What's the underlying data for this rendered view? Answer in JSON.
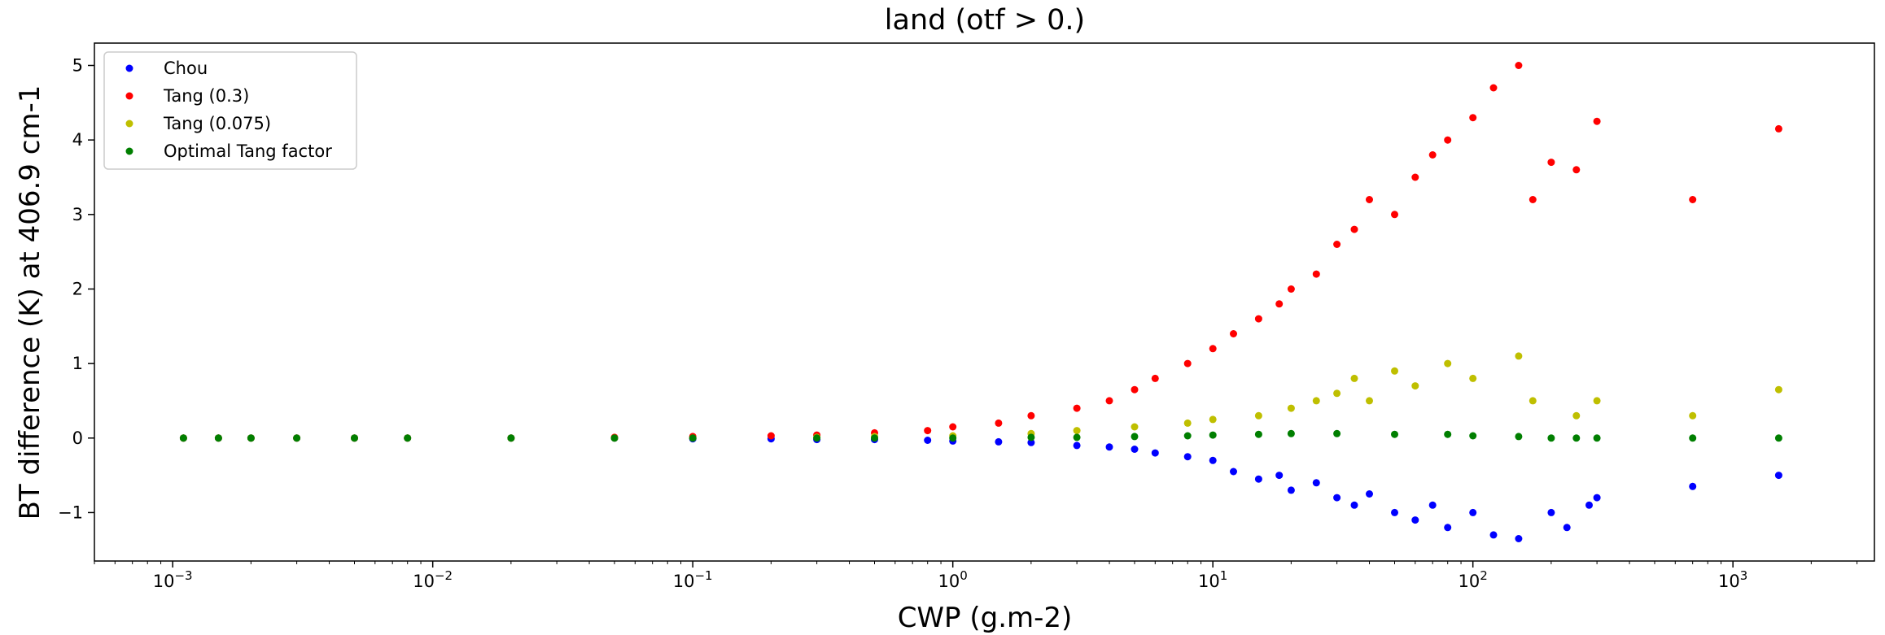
{
  "chart_data": {
    "type": "scatter",
    "title": "land (otf > 0.)",
    "xlabel": "CWP (g.m-2)",
    "ylabel": "BT difference (K) at 406.9 cm-1",
    "xscale": "log",
    "xlim": [
      0.0005,
      3500
    ],
    "ylim": [
      -1.65,
      5.3
    ],
    "xticks": [
      0.001,
      0.01,
      0.1,
      1,
      10,
      100,
      1000
    ],
    "xtick_labels": [
      {
        "base": "10",
        "exp": "−3"
      },
      {
        "base": "10",
        "exp": "−2"
      },
      {
        "base": "10",
        "exp": "−1"
      },
      {
        "base": "10",
        "exp": "0"
      },
      {
        "base": "10",
        "exp": "1"
      },
      {
        "base": "10",
        "exp": "2"
      },
      {
        "base": "10",
        "exp": "3"
      }
    ],
    "yticks": [
      -1,
      0,
      1,
      2,
      3,
      4,
      5
    ],
    "ytick_labels": [
      "−1",
      "0",
      "1",
      "2",
      "3",
      "4",
      "5"
    ],
    "legend_position": "top-left",
    "grid": false,
    "series": [
      {
        "name": "Chou",
        "color": "#0000ff",
        "points": [
          [
            0.0011,
            0
          ],
          [
            0.0015,
            0
          ],
          [
            0.002,
            0
          ],
          [
            0.003,
            0
          ],
          [
            0.005,
            0
          ],
          [
            0.008,
            0
          ],
          [
            0.02,
            0
          ],
          [
            0.05,
            0
          ],
          [
            0.1,
            -0.01
          ],
          [
            0.2,
            -0.01
          ],
          [
            0.3,
            -0.02
          ],
          [
            0.5,
            -0.02
          ],
          [
            0.8,
            -0.03
          ],
          [
            1,
            -0.04
          ],
          [
            1.5,
            -0.05
          ],
          [
            2,
            -0.06
          ],
          [
            3,
            -0.1
          ],
          [
            4,
            -0.12
          ],
          [
            5,
            -0.15
          ],
          [
            6,
            -0.2
          ],
          [
            8,
            -0.25
          ],
          [
            10,
            -0.3
          ],
          [
            12,
            -0.45
          ],
          [
            15,
            -0.55
          ],
          [
            18,
            -0.5
          ],
          [
            20,
            -0.7
          ],
          [
            25,
            -0.6
          ],
          [
            30,
            -0.8
          ],
          [
            35,
            -0.9
          ],
          [
            40,
            -0.75
          ],
          [
            50,
            -1.0
          ],
          [
            60,
            -1.1
          ],
          [
            70,
            -0.9
          ],
          [
            80,
            -1.2
          ],
          [
            100,
            -1.0
          ],
          [
            120,
            -1.3
          ],
          [
            150,
            -1.35
          ],
          [
            200,
            -1.0
          ],
          [
            230,
            -1.2
          ],
          [
            280,
            -0.9
          ],
          [
            300,
            -0.8
          ],
          [
            700,
            -0.65
          ],
          [
            1500,
            -0.5
          ]
        ]
      },
      {
        "name": "Tang (0.3)",
        "color": "#ff0000",
        "points": [
          [
            0.0011,
            0
          ],
          [
            0.0015,
            0
          ],
          [
            0.002,
            0
          ],
          [
            0.003,
            0
          ],
          [
            0.005,
            0
          ],
          [
            0.008,
            0
          ],
          [
            0.02,
            0
          ],
          [
            0.05,
            0.01
          ],
          [
            0.1,
            0.02
          ],
          [
            0.2,
            0.03
          ],
          [
            0.3,
            0.04
          ],
          [
            0.5,
            0.07
          ],
          [
            0.8,
            0.1
          ],
          [
            1,
            0.15
          ],
          [
            1.5,
            0.2
          ],
          [
            2,
            0.3
          ],
          [
            3,
            0.4
          ],
          [
            4,
            0.5
          ],
          [
            5,
            0.65
          ],
          [
            6,
            0.8
          ],
          [
            8,
            1.0
          ],
          [
            10,
            1.2
          ],
          [
            12,
            1.4
          ],
          [
            15,
            1.6
          ],
          [
            18,
            1.8
          ],
          [
            20,
            2.0
          ],
          [
            25,
            2.2
          ],
          [
            30,
            2.6
          ],
          [
            35,
            2.8
          ],
          [
            40,
            3.2
          ],
          [
            50,
            3.0
          ],
          [
            60,
            3.5
          ],
          [
            70,
            3.8
          ],
          [
            80,
            4.0
          ],
          [
            100,
            4.3
          ],
          [
            120,
            4.7
          ],
          [
            150,
            5.0
          ],
          [
            170,
            3.2
          ],
          [
            200,
            3.7
          ],
          [
            250,
            3.6
          ],
          [
            300,
            4.25
          ],
          [
            700,
            3.2
          ],
          [
            1500,
            4.15
          ]
        ]
      },
      {
        "name": "Tang (0.075)",
        "color": "#bfbf00",
        "points": [
          [
            0.0011,
            0
          ],
          [
            0.0015,
            0
          ],
          [
            0.002,
            0
          ],
          [
            0.003,
            0
          ],
          [
            0.005,
            0
          ],
          [
            0.008,
            0
          ],
          [
            0.02,
            0
          ],
          [
            0.05,
            0
          ],
          [
            0.1,
            0
          ],
          [
            0.3,
            0.01
          ],
          [
            0.5,
            0.02
          ],
          [
            1,
            0.03
          ],
          [
            2,
            0.06
          ],
          [
            3,
            0.1
          ],
          [
            5,
            0.15
          ],
          [
            8,
            0.2
          ],
          [
            10,
            0.25
          ],
          [
            15,
            0.3
          ],
          [
            20,
            0.4
          ],
          [
            25,
            0.5
          ],
          [
            30,
            0.6
          ],
          [
            35,
            0.8
          ],
          [
            40,
            0.5
          ],
          [
            50,
            0.9
          ],
          [
            60,
            0.7
          ],
          [
            80,
            1.0
          ],
          [
            100,
            0.8
          ],
          [
            150,
            1.1
          ],
          [
            170,
            0.5
          ],
          [
            250,
            0.3
          ],
          [
            300,
            0.5
          ],
          [
            700,
            0.3
          ],
          [
            1500,
            0.65
          ]
        ]
      },
      {
        "name": "Optimal Tang factor",
        "color": "#007f00",
        "points": [
          [
            0.0011,
            0
          ],
          [
            0.0015,
            0
          ],
          [
            0.002,
            0
          ],
          [
            0.003,
            0
          ],
          [
            0.005,
            0
          ],
          [
            0.008,
            0
          ],
          [
            0.02,
            0
          ],
          [
            0.05,
            0
          ],
          [
            0.1,
            0
          ],
          [
            0.3,
            0
          ],
          [
            0.5,
            0
          ],
          [
            1,
            0
          ],
          [
            2,
            0.01
          ],
          [
            3,
            0.01
          ],
          [
            5,
            0.02
          ],
          [
            8,
            0.03
          ],
          [
            10,
            0.04
          ],
          [
            15,
            0.05
          ],
          [
            20,
            0.06
          ],
          [
            30,
            0.06
          ],
          [
            50,
            0.05
          ],
          [
            80,
            0.05
          ],
          [
            100,
            0.03
          ],
          [
            150,
            0.02
          ],
          [
            200,
            0
          ],
          [
            250,
            0
          ],
          [
            300,
            0
          ],
          [
            700,
            0
          ],
          [
            1500,
            0
          ]
        ]
      }
    ]
  }
}
